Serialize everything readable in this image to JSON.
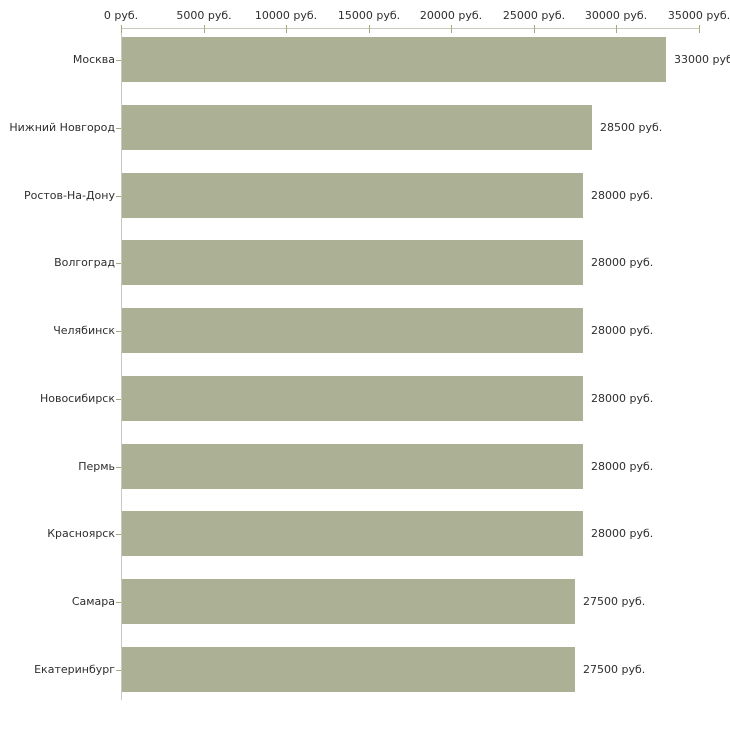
{
  "chart_data": {
    "type": "bar",
    "orientation": "horizontal",
    "title": "",
    "categories": [
      "Москва",
      "Нижний Новгород",
      "Ростов-На-Дону",
      "Волгоград",
      "Челябинск",
      "Новосибирск",
      "Пермь",
      "Красноярск",
      "Самара",
      "Екатеринбург"
    ],
    "values": [
      33000,
      28500,
      28000,
      28000,
      28000,
      28000,
      28000,
      28000,
      27500,
      27500
    ],
    "value_labels": [
      "33000 руб",
      "28500 руб.",
      "28000 руб.",
      "28000 руб.",
      "28000 руб.",
      "28000 руб.",
      "28000 руб.",
      "28000 руб.",
      "27500 руб.",
      "27500 руб."
    ],
    "xlabel": "",
    "ylabel": "",
    "x_axis": {
      "min": 0,
      "max": 35000,
      "ticks": [
        0,
        5000,
        10000,
        15000,
        20000,
        25000,
        30000,
        35000
      ],
      "tick_labels": [
        "0 руб.",
        "5000 руб.",
        "10000 руб.",
        "15000 руб.",
        "20000 руб.",
        "25000 руб.",
        "30000 руб.",
        "35000 руб."
      ]
    },
    "legend": null,
    "grid": false,
    "colors": {
      "bar": "#acb196",
      "axis_line": "#c9c9c2",
      "tick_mark": "#a9a87c",
      "text": "#2e2e2e",
      "background": "#ffffff"
    }
  }
}
